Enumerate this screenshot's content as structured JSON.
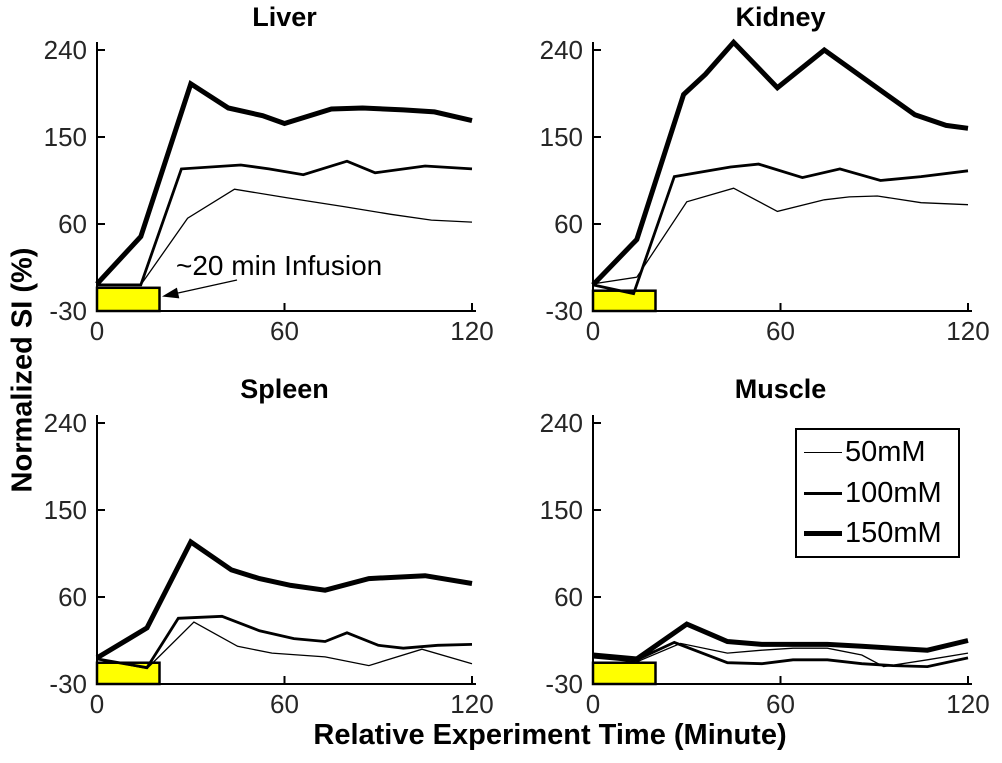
{
  "figure": {
    "ylabel": "Normalized SI (%)",
    "xlabel": "Relative Experiment Time (Minute)",
    "annotation_label": "~20 min Infusion",
    "colors": {
      "line": "#000000",
      "infusion_fill": "#FFFF00",
      "tick_text": "#262626",
      "background": "#FFFFFF"
    },
    "legend": {
      "position": "upper-right-of-muscle-subplot",
      "items": [
        {
          "label": "50mM",
          "weight": "thin"
        },
        {
          "label": "100mM",
          "weight": "medium"
        },
        {
          "label": "150mM",
          "weight": "thick"
        }
      ]
    },
    "infusion": {
      "t_start_min": 0,
      "t_end_min": 20
    }
  },
  "chart_data": [
    {
      "type": "line",
      "title": "Liver",
      "xlabel": "Relative Experiment Time (Minute)",
      "ylabel": "Normalized SI (%)",
      "xlim": [
        0,
        120
      ],
      "ylim": [
        -30,
        240
      ],
      "xticks": [
        0,
        60,
        120
      ],
      "yticks": [
        -30,
        60,
        150,
        240
      ],
      "grid": false,
      "infusion_bar": {
        "x0": 0,
        "x1": 20,
        "y0": -30,
        "y1": -6
      },
      "series": [
        {
          "name": "50mM",
          "x": [
            0,
            14,
            29,
            44,
            61,
            79,
            94,
            107,
            120
          ],
          "y": [
            -3,
            -3,
            66,
            96,
            87,
            78,
            70,
            64,
            62
          ]
        },
        {
          "name": "100mM",
          "x": [
            0,
            14,
            27,
            46,
            55,
            66,
            80,
            89,
            105,
            120
          ],
          "y": [
            -3,
            -3,
            117,
            121,
            117,
            111,
            125,
            113,
            120,
            117
          ]
        },
        {
          "name": "150mM",
          "x": [
            0,
            14,
            30,
            42,
            53,
            60,
            75,
            85,
            98,
            108,
            120
          ],
          "y": [
            -2,
            47,
            205,
            180,
            172,
            164,
            179,
            180,
            178,
            176,
            167
          ]
        }
      ]
    },
    {
      "type": "line",
      "title": "Kidney",
      "xlabel": "Relative Experiment Time (Minute)",
      "ylabel": "Normalized SI (%)",
      "xlim": [
        0,
        120
      ],
      "ylim": [
        -30,
        240
      ],
      "xticks": [
        0,
        60,
        120
      ],
      "yticks": [
        -30,
        60,
        150,
        240
      ],
      "grid": false,
      "infusion_bar": {
        "x0": 0,
        "x1": 20,
        "y0": -30,
        "y1": -9
      },
      "series": [
        {
          "name": "50mM",
          "x": [
            0,
            14,
            30,
            45,
            59,
            74,
            82,
            91,
            105,
            120
          ],
          "y": [
            -2,
            5,
            83,
            97,
            73,
            85,
            88,
            89,
            82,
            80
          ]
        },
        {
          "name": "100mM",
          "x": [
            0,
            13,
            26,
            44,
            53,
            67,
            79,
            92,
            105,
            120
          ],
          "y": [
            -3,
            -12,
            109,
            119,
            122,
            108,
            117,
            105,
            109,
            115
          ]
        },
        {
          "name": "150mM",
          "x": [
            0,
            14,
            29,
            36,
            45,
            59,
            74,
            90,
            103,
            113,
            120
          ],
          "y": [
            -3,
            44,
            194,
            215,
            248,
            201,
            240,
            203,
            173,
            162,
            159
          ]
        }
      ]
    },
    {
      "type": "line",
      "title": "Spleen",
      "xlabel": "Relative Experiment Time (Minute)",
      "ylabel": "Normalized SI (%)",
      "xlim": [
        0,
        120
      ],
      "ylim": [
        -30,
        240
      ],
      "xticks": [
        0,
        60,
        120
      ],
      "yticks": [
        -30,
        60,
        150,
        240
      ],
      "grid": false,
      "infusion_bar": {
        "x0": 0,
        "x1": 20,
        "y0": -30,
        "y1": -8
      },
      "series": [
        {
          "name": "50mM",
          "x": [
            0,
            16,
            31,
            45,
            56,
            73,
            87,
            104,
            120
          ],
          "y": [
            -4,
            -14,
            34,
            9,
            2,
            -2,
            -11,
            6,
            -9
          ]
        },
        {
          "name": "100mM",
          "x": [
            0,
            16,
            26,
            40,
            52,
            63,
            73,
            80,
            90,
            98,
            109,
            120
          ],
          "y": [
            -4,
            -13,
            38,
            40,
            25,
            17,
            14,
            23,
            10,
            7,
            10,
            11
          ]
        },
        {
          "name": "150mM",
          "x": [
            0,
            16,
            30,
            43,
            52,
            62,
            73,
            87,
            105,
            120
          ],
          "y": [
            -3,
            28,
            117,
            88,
            79,
            72,
            67,
            79,
            82,
            74
          ]
        }
      ]
    },
    {
      "type": "line",
      "title": "Muscle",
      "xlabel": "Relative Experiment Time (Minute)",
      "ylabel": "Normalized SI (%)",
      "xlim": [
        0,
        120
      ],
      "ylim": [
        -30,
        240
      ],
      "xticks": [
        0,
        60,
        120
      ],
      "yticks": [
        -30,
        60,
        150,
        240
      ],
      "grid": false,
      "infusion_bar": {
        "x0": 0,
        "x1": 20,
        "y0": -30,
        "y1": -8
      },
      "series": [
        {
          "name": "50mM",
          "x": [
            0,
            14,
            28,
            43,
            54,
            64,
            75,
            86,
            93,
            107,
            120
          ],
          "y": [
            -3,
            -7,
            12,
            2,
            5,
            7,
            7,
            0,
            -12,
            -5,
            2
          ]
        },
        {
          "name": "100mM",
          "x": [
            0,
            14,
            26,
            43,
            54,
            64,
            75,
            86,
            96,
            107,
            120
          ],
          "y": [
            -2,
            -5,
            13,
            -8,
            -9,
            -5,
            -5,
            -9,
            -11,
            -12,
            -3
          ]
        },
        {
          "name": "150mM",
          "x": [
            0,
            14,
            30,
            43,
            54,
            64,
            75,
            86,
            96,
            107,
            120
          ],
          "y": [
            0,
            -4,
            32,
            14,
            11,
            11,
            11,
            9,
            7,
            5,
            15
          ]
        }
      ]
    }
  ]
}
